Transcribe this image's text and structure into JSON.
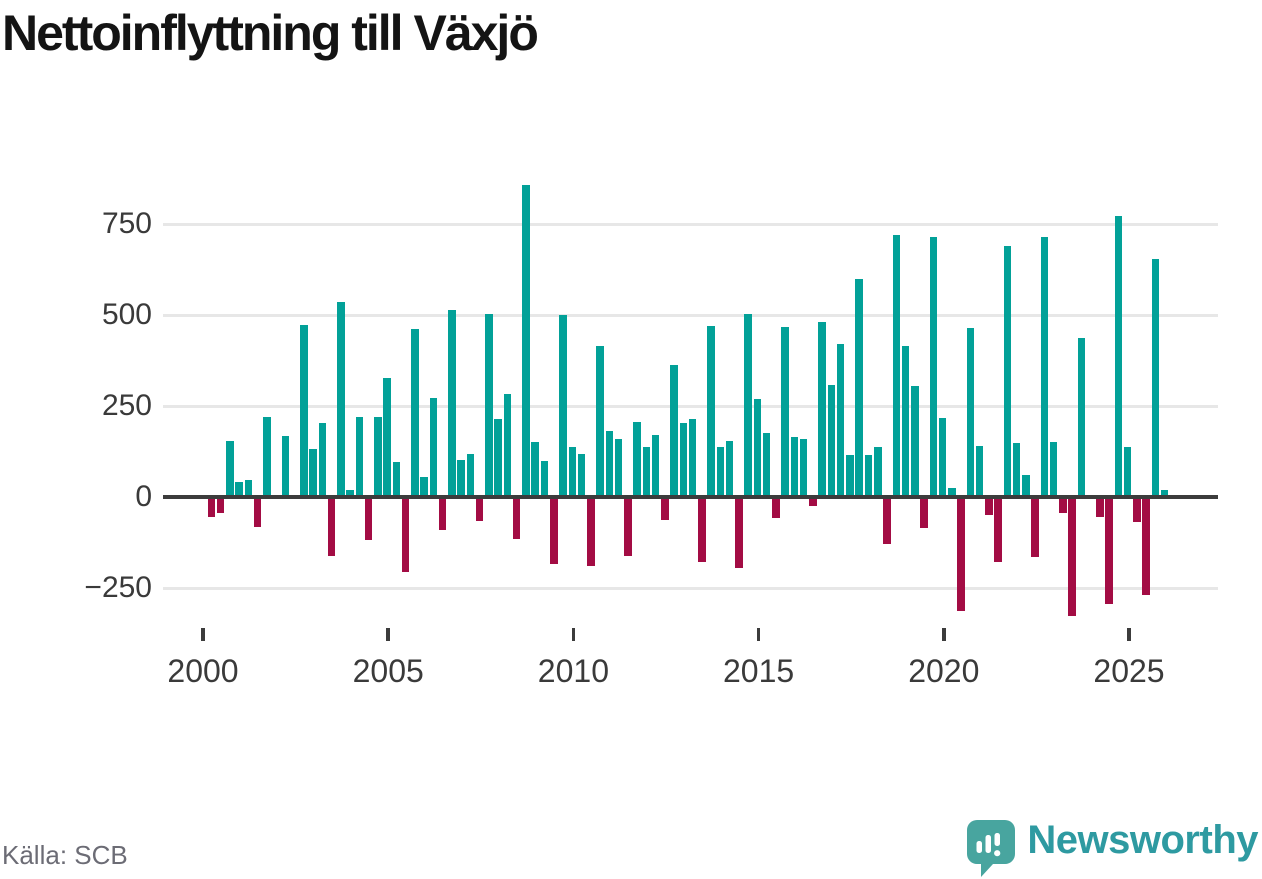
{
  "title": "Nettoinflyttning till Växjö",
  "source": "Källa: SCB",
  "branding": {
    "name": "Newsworthy"
  },
  "colors": {
    "positive": "#02a198",
    "negative": "#a30c44",
    "axis": "#3c3c3c",
    "grid": "#e7e7e7",
    "brand_teal": "#2e9aa1",
    "icon_teal": "#48a59f"
  },
  "chart_data": {
    "type": "bar",
    "title": "Nettoinflyttning till Växjö",
    "xlabel": "",
    "ylabel": "",
    "grid": true,
    "ylim": [
      -380,
      880
    ],
    "y_ticks": [
      750,
      500,
      250,
      0,
      -250
    ],
    "y_tick_labels": [
      "750",
      "500",
      "250",
      "0",
      "−250"
    ],
    "x_tick_labels": [
      "2000",
      "2005",
      "2010",
      "2015",
      "2020",
      "2025"
    ],
    "categories": [
      "2000Q1",
      "2000Q2",
      "2000Q3",
      "2000Q4",
      "2001Q1",
      "2001Q2",
      "2001Q3",
      "2001Q4",
      "2002Q1",
      "2002Q2",
      "2002Q3",
      "2002Q4",
      "2003Q1",
      "2003Q2",
      "2003Q3",
      "2003Q4",
      "2004Q1",
      "2004Q2",
      "2004Q3",
      "2004Q4",
      "2005Q1",
      "2005Q2",
      "2005Q3",
      "2005Q4",
      "2006Q1",
      "2006Q2",
      "2006Q3",
      "2006Q4",
      "2007Q1",
      "2007Q2",
      "2007Q3",
      "2007Q4",
      "2008Q1",
      "2008Q2",
      "2008Q3",
      "2008Q4",
      "2009Q1",
      "2009Q2",
      "2009Q3",
      "2009Q4",
      "2010Q1",
      "2010Q2",
      "2010Q3",
      "2010Q4",
      "2011Q1",
      "2011Q2",
      "2011Q3",
      "2011Q4",
      "2012Q1",
      "2012Q2",
      "2012Q3",
      "2012Q4",
      "2013Q1",
      "2013Q2",
      "2013Q3",
      "2013Q4",
      "2014Q1",
      "2014Q2",
      "2014Q3",
      "2014Q4",
      "2015Q1",
      "2015Q2",
      "2015Q3",
      "2015Q4",
      "2016Q1",
      "2016Q2",
      "2016Q3",
      "2016Q4",
      "2017Q1",
      "2017Q2",
      "2017Q3",
      "2017Q4",
      "2018Q1",
      "2018Q2",
      "2018Q3",
      "2018Q4",
      "2019Q1",
      "2019Q2",
      "2019Q3",
      "2019Q4",
      "2020Q1",
      "2020Q2",
      "2020Q3",
      "2020Q4",
      "2021Q1",
      "2021Q2",
      "2021Q3",
      "2021Q4",
      "2022Q1",
      "2022Q2",
      "2022Q3",
      "2022Q4",
      "2023Q1",
      "2023Q2",
      "2023Q3",
      "2023Q4",
      "2024Q1",
      "2024Q2",
      "2024Q3",
      "2024Q4",
      "2025Q1",
      "2025Q2",
      "2025Q3",
      "2025Q4"
    ],
    "values": [
      -55,
      -45,
      155,
      42,
      47,
      -82,
      220,
      0,
      168,
      0,
      473,
      132,
      204,
      -162,
      535,
      20,
      220,
      -119,
      220,
      328,
      96,
      -207,
      461,
      54,
      273,
      -91,
      514,
      103,
      117,
      -66,
      503,
      215,
      283,
      -116,
      857,
      152,
      98,
      -184,
      500,
      138,
      117,
      -190,
      414,
      180,
      158,
      -163,
      207,
      138,
      170,
      -64,
      362,
      204,
      215,
      -178,
      469,
      138,
      155,
      -195,
      504,
      268,
      177,
      -59,
      467,
      164,
      160,
      -24,
      481,
      307,
      420,
      115,
      600,
      115,
      136,
      -128,
      720,
      414,
      305,
      -86,
      715,
      218,
      25,
      -314,
      465,
      140,
      -50,
      -178,
      690,
      149,
      60,
      -164,
      715,
      150,
      -45,
      -327,
      437,
      0,
      -56,
      -293,
      773,
      138,
      -69,
      -268,
      655,
      20
    ]
  }
}
